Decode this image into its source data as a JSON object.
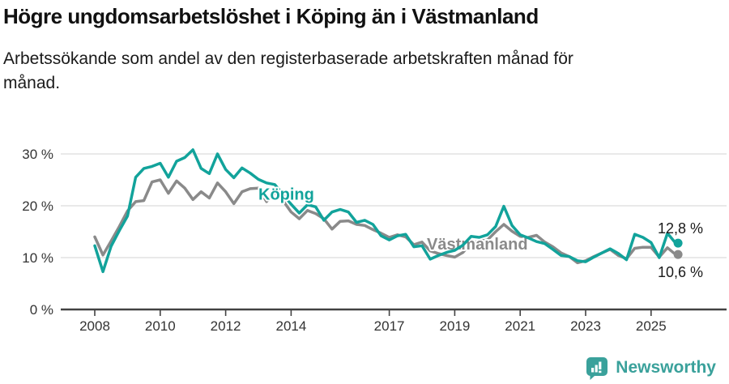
{
  "chart_data": {
    "type": "line",
    "title": "Högre ungdomsarbetslöshet i Köping än i Västmanland",
    "subtitle_lines": [
      "Arbetssökande som andel av den registerbaserade arbetskraften månad för",
      "månad."
    ],
    "xlabel": "",
    "ylabel": "",
    "ylim": [
      0,
      33
    ],
    "grid": "horizontal",
    "legend_position": "inline-labels",
    "x_ticks": [
      2008,
      2010,
      2012,
      2014,
      2017,
      2019,
      2021,
      2023,
      2025
    ],
    "y_ticks": [
      {
        "value": 0,
        "label": "0 %"
      },
      {
        "value": 10,
        "label": "10 %"
      },
      {
        "value": 20,
        "label": "20 %"
      },
      {
        "value": 30,
        "label": "30 %"
      }
    ],
    "x": [
      2008.0,
      2008.25,
      2008.5,
      2008.75,
      2009.0,
      2009.25,
      2009.5,
      2009.75,
      2010.0,
      2010.25,
      2010.5,
      2010.75,
      2011.0,
      2011.25,
      2011.5,
      2011.75,
      2012.0,
      2012.25,
      2012.5,
      2012.75,
      2013.0,
      2013.25,
      2013.5,
      2013.75,
      2014.0,
      2014.25,
      2014.5,
      2014.75,
      2015.0,
      2015.25,
      2015.5,
      2015.75,
      2016.0,
      2016.25,
      2016.5,
      2016.75,
      2017.0,
      2017.25,
      2017.5,
      2017.75,
      2018.0,
      2018.25,
      2018.5,
      2018.75,
      2019.0,
      2019.25,
      2019.5,
      2019.75,
      2020.0,
      2020.25,
      2020.5,
      2020.75,
      2021.0,
      2021.25,
      2021.5,
      2021.75,
      2022.0,
      2022.25,
      2022.5,
      2022.75,
      2023.0,
      2023.25,
      2023.5,
      2023.75,
      2024.0,
      2024.25,
      2024.5,
      2024.75,
      2025.0,
      2025.25,
      2025.5,
      2025.75
    ],
    "series": [
      {
        "id": "vastmanland",
        "name": "Västmanland",
        "color": "#8a8a8a",
        "end_label": "10,6 %",
        "end_value": 10.6,
        "end_label_dy": 28,
        "inline_label": {
          "x": 2018.15,
          "y": 11.6
        },
        "values": [
          14.0,
          10.5,
          13.2,
          16.0,
          19.0,
          20.8,
          21.0,
          24.6,
          25.0,
          22.4,
          24.8,
          23.4,
          21.2,
          22.7,
          21.5,
          24.4,
          22.7,
          20.4,
          22.7,
          23.3,
          23.4,
          20.8,
          22.6,
          21.0,
          18.8,
          17.5,
          19.1,
          18.5,
          17.5,
          15.5,
          17.0,
          17.1,
          16.4,
          16.2,
          15.4,
          14.7,
          13.9,
          14.4,
          14.0,
          12.5,
          13.0,
          11.3,
          10.8,
          10.4,
          10.1,
          11.0,
          12.8,
          13.2,
          13.4,
          15.0,
          16.4,
          15.1,
          14.1,
          13.9,
          14.3,
          13.0,
          12.1,
          10.9,
          10.2,
          9.0,
          9.4,
          10.2,
          10.9,
          11.6,
          10.4,
          9.8,
          11.8,
          12.0,
          12.0,
          10.1,
          11.9,
          10.6
        ]
      },
      {
        "id": "koping",
        "name": "Köping",
        "color": "#12a39b",
        "end_label": "12,8 %",
        "end_value": 12.8,
        "end_label_dy": -12,
        "inline_label": {
          "x": 2013.0,
          "y": 21.2
        },
        "values": [
          12.3,
          7.3,
          12.2,
          15.2,
          18.0,
          25.5,
          27.2,
          27.6,
          28.2,
          25.5,
          28.6,
          29.3,
          30.8,
          27.2,
          26.2,
          30.0,
          27.0,
          25.4,
          27.3,
          26.3,
          25.1,
          24.4,
          24.1,
          22.2,
          20.3,
          18.6,
          20.2,
          19.8,
          17.2,
          18.8,
          19.3,
          18.8,
          16.8,
          17.2,
          16.4,
          14.2,
          13.4,
          14.2,
          14.5,
          12.1,
          12.3,
          9.7,
          10.4,
          11.0,
          11.4,
          12.4,
          14.1,
          13.9,
          14.4,
          16.0,
          19.9,
          16.2,
          14.4,
          13.8,
          13.1,
          12.7,
          11.6,
          10.4,
          10.2,
          9.4,
          9.2,
          10.1,
          10.9,
          11.7,
          10.8,
          9.6,
          14.5,
          13.9,
          12.9,
          10.0,
          14.7,
          12.8
        ]
      }
    ]
  },
  "footer": {
    "brand": "Newsworthy",
    "brand_color": "#3aa19b"
  }
}
